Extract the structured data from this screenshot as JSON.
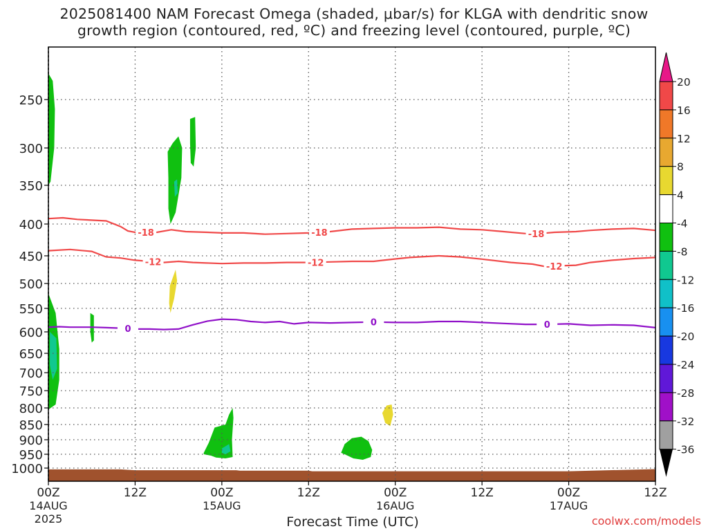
{
  "title_lines": [
    "2025081400 NAM Forecast Omega (shaded, μbar/s) for KLGA with dendritic snow",
    "growth region (contoured, red, ºC) and freezing level (contoured, purple, ºC)"
  ],
  "credit": "coolwx.com/models",
  "colors": {
    "temperature_contour": "#f04848",
    "freezing_contour": "#9010c8",
    "ground": "#a0522d",
    "grid": "#555555"
  },
  "chart_data": {
    "type": "heatmap",
    "xlabel": "Forecast Time (UTC)",
    "ylabel": "",
    "x_range_hours": [
      0,
      84
    ],
    "x_ticks": [
      {
        "hour": 0,
        "label": "00Z",
        "date": "14AUG",
        "year": "2025"
      },
      {
        "hour": 12,
        "label": "12Z",
        "date": "",
        "year": ""
      },
      {
        "hour": 24,
        "label": "00Z",
        "date": "15AUG",
        "year": ""
      },
      {
        "hour": 36,
        "label": "12Z",
        "date": "",
        "year": ""
      },
      {
        "hour": 48,
        "label": "00Z",
        "date": "16AUG",
        "year": ""
      },
      {
        "hour": 60,
        "label": "12Z",
        "date": "",
        "year": ""
      },
      {
        "hour": 72,
        "label": "00Z",
        "date": "17AUG",
        "year": ""
      },
      {
        "hour": 84,
        "label": "12Z",
        "date": "",
        "year": ""
      }
    ],
    "y_range_hpa": [
      1060,
      200
    ],
    "y_ticks": [
      250,
      300,
      350,
      400,
      450,
      500,
      550,
      600,
      650,
      700,
      750,
      800,
      850,
      900,
      950,
      1000
    ],
    "grid": true,
    "colorbar": {
      "labels": [
        "20",
        "16",
        "12",
        "8",
        "4",
        "-4",
        "-8",
        "-12",
        "-16",
        "-20",
        "-24",
        "-28",
        "-32",
        "-36"
      ],
      "colors": [
        "#f04848",
        "#f07828",
        "#e8a830",
        "#e8d830",
        "#ffffff",
        "#10c010",
        "#10c890",
        "#10c0c8",
        "#1890f0",
        "#1838e0",
        "#6018d8",
        "#a010c8",
        "#a0a0a0"
      ],
      "top_arrow_color": "#e81888",
      "bottom_arrow_color": "#000000"
    },
    "contours": [
      {
        "label": "-18",
        "color": "#f04848",
        "points": [
          [
            0,
            393
          ],
          [
            2,
            392
          ],
          [
            4,
            394
          ],
          [
            8,
            396
          ],
          [
            10,
            404
          ],
          [
            11,
            411
          ],
          [
            12,
            413
          ],
          [
            15,
            413
          ],
          [
            17,
            409
          ],
          [
            19,
            412
          ],
          [
            22,
            413
          ],
          [
            24,
            414
          ],
          [
            27,
            414
          ],
          [
            30,
            416
          ],
          [
            33,
            415
          ],
          [
            36,
            414
          ],
          [
            39,
            412
          ],
          [
            42,
            408
          ],
          [
            45,
            407
          ],
          [
            48,
            406
          ],
          [
            51,
            406
          ],
          [
            54,
            405
          ],
          [
            57,
            408
          ],
          [
            60,
            409
          ],
          [
            63,
            412
          ],
          [
            66,
            415
          ],
          [
            68,
            415
          ],
          [
            70,
            413
          ],
          [
            73,
            412
          ],
          [
            75,
            410
          ],
          [
            78,
            408
          ],
          [
            81,
            407
          ],
          [
            84,
            410
          ]
        ],
        "label_hours": [
          13.5,
          37.5,
          67.5
        ]
      },
      {
        "label": "-12",
        "color": "#f04848",
        "points": [
          [
            0,
            442
          ],
          [
            3,
            440
          ],
          [
            6,
            443
          ],
          [
            8,
            452
          ],
          [
            10,
            454
          ],
          [
            12,
            458
          ],
          [
            14,
            460
          ],
          [
            16,
            462
          ],
          [
            18,
            460
          ],
          [
            20,
            462
          ],
          [
            24,
            464
          ],
          [
            27,
            463
          ],
          [
            30,
            463
          ],
          [
            33,
            462
          ],
          [
            36,
            462
          ],
          [
            39,
            461
          ],
          [
            42,
            460
          ],
          [
            45,
            460
          ],
          [
            47,
            457
          ],
          [
            50,
            453
          ],
          [
            54,
            450
          ],
          [
            57,
            452
          ],
          [
            60,
            456
          ],
          [
            64,
            462
          ],
          [
            67,
            465
          ],
          [
            69,
            470
          ],
          [
            71,
            468
          ],
          [
            73,
            467
          ],
          [
            75,
            462
          ],
          [
            78,
            458
          ],
          [
            81,
            455
          ],
          [
            84,
            453
          ]
        ],
        "label_hours": [
          14.5,
          37,
          70
        ]
      },
      {
        "label": "0",
        "color": "#9010c8",
        "points": [
          [
            0,
            590
          ],
          [
            1.5,
            589
          ],
          [
            3,
            590
          ],
          [
            6,
            590
          ],
          [
            8,
            591
          ],
          [
            10,
            592
          ],
          [
            12,
            594
          ],
          [
            14,
            594
          ],
          [
            16,
            595
          ],
          [
            18,
            594
          ],
          [
            20,
            585
          ],
          [
            22,
            577
          ],
          [
            24,
            573
          ],
          [
            26,
            574
          ],
          [
            28,
            578
          ],
          [
            30,
            580
          ],
          [
            32,
            578
          ],
          [
            34,
            583
          ],
          [
            36,
            580
          ],
          [
            39,
            581
          ],
          [
            42,
            580
          ],
          [
            45,
            579
          ],
          [
            48,
            580
          ],
          [
            51,
            580
          ],
          [
            54,
            578
          ],
          [
            57,
            578
          ],
          [
            60,
            580
          ],
          [
            63,
            582
          ],
          [
            66,
            584
          ],
          [
            69,
            584
          ],
          [
            72,
            583
          ],
          [
            75,
            586
          ],
          [
            78,
            585
          ],
          [
            81,
            586
          ],
          [
            84,
            591
          ]
        ],
        "label_hours": [
          11,
          45,
          69
        ]
      }
    ],
    "omega_regions": [
      {
        "value_range": [
          -8,
          -4
        ],
        "color": "#10c010",
        "polygon": [
          [
            0,
            215
          ],
          [
            0.6,
            225
          ],
          [
            0.9,
            260
          ],
          [
            0.8,
            300
          ],
          [
            0.3,
            345
          ],
          [
            0,
            350
          ]
        ]
      },
      {
        "value_range": [
          -8,
          -4
        ],
        "color": "#10c010",
        "polygon": [
          [
            16.5,
            305
          ],
          [
            17.2,
            295
          ],
          [
            18,
            288
          ],
          [
            18.5,
            300
          ],
          [
            18.4,
            340
          ],
          [
            17.6,
            385
          ],
          [
            16.9,
            400
          ],
          [
            16.6,
            380
          ],
          [
            16.6,
            340
          ]
        ]
      },
      {
        "value_range": [
          -8,
          -4
        ],
        "color": "#10c010",
        "polygon": [
          [
            19.6,
            270
          ],
          [
            20.3,
            268
          ],
          [
            20.4,
            300
          ],
          [
            20.1,
            325
          ],
          [
            19.7,
            320
          ],
          [
            19.6,
            295
          ]
        ]
      },
      {
        "value_range": [
          -12,
          -8
        ],
        "color": "#10c890",
        "polygon": [
          [
            17.4,
            345
          ],
          [
            17.8,
            342
          ],
          [
            17.9,
            360
          ],
          [
            17.5,
            365
          ]
        ]
      },
      {
        "value_range": [
          8,
          4
        ],
        "color": "#e8d830",
        "polygon": [
          [
            16.8,
            505
          ],
          [
            17.6,
            475
          ],
          [
            17.8,
            495
          ],
          [
            17.4,
            530
          ],
          [
            16.9,
            560
          ],
          [
            16.7,
            540
          ]
        ]
      },
      {
        "value_range": [
          -8,
          -4
        ],
        "color": "#10c010",
        "polygon": [
          [
            0,
            520
          ],
          [
            1,
            560
          ],
          [
            1.5,
            640
          ],
          [
            1.5,
            720
          ],
          [
            1,
            790
          ],
          [
            0,
            805
          ]
        ]
      },
      {
        "value_range": [
          -12,
          -8
        ],
        "color": "#10c890",
        "polygon": [
          [
            0.2,
            600
          ],
          [
            1.1,
            615
          ],
          [
            1.2,
            690
          ],
          [
            0.6,
            720
          ],
          [
            0.2,
            680
          ]
        ]
      },
      {
        "value_range": [
          -8,
          -4
        ],
        "color": "#10c010",
        "polygon": [
          [
            5.8,
            560
          ],
          [
            6.3,
            565
          ],
          [
            6.3,
            620
          ],
          [
            6,
            625
          ],
          [
            5.8,
            600
          ]
        ]
      },
      {
        "value_range": [
          -8,
          -4
        ],
        "color": "#10c010",
        "polygon": [
          [
            21.5,
            945
          ],
          [
            22.2,
            910
          ],
          [
            23,
            860
          ],
          [
            24.5,
            850
          ],
          [
            25,
            820
          ],
          [
            25.5,
            800
          ],
          [
            25.6,
            830
          ],
          [
            25.4,
            900
          ],
          [
            25.5,
            960
          ],
          [
            24.5,
            965
          ],
          [
            23.2,
            962
          ],
          [
            22.5,
            955
          ],
          [
            21.5,
            950
          ]
        ]
      },
      {
        "value_range": [
          -12,
          -8
        ],
        "color": "#10c890",
        "polygon": [
          [
            24,
            930
          ],
          [
            25,
            915
          ],
          [
            25.2,
            940
          ],
          [
            24.5,
            950
          ],
          [
            24,
            945
          ]
        ]
      },
      {
        "value_range": [
          -8,
          -4
        ],
        "color": "#10c010",
        "polygon": [
          [
            40.5,
            945
          ],
          [
            41,
            915
          ],
          [
            42,
            895
          ],
          [
            43.3,
            890
          ],
          [
            44.3,
            905
          ],
          [
            44.8,
            935
          ],
          [
            44.6,
            960
          ],
          [
            43.5,
            970
          ],
          [
            42.2,
            965
          ],
          [
            41,
            950
          ]
        ]
      },
      {
        "value_range": [
          8,
          4
        ],
        "color": "#e8d830",
        "polygon": [
          [
            46.2,
            815
          ],
          [
            46.8,
            793
          ],
          [
            47.5,
            790
          ],
          [
            47.7,
            820
          ],
          [
            47.3,
            855
          ],
          [
            46.6,
            845
          ]
        ]
      }
    ],
    "ground_pressure_hpa": [
      [
        0,
        1005
      ],
      [
        10,
        1005
      ],
      [
        12,
        1008
      ],
      [
        26,
        1008
      ],
      [
        26.5,
        1010
      ],
      [
        36,
        1010
      ],
      [
        36.5,
        1012
      ],
      [
        72,
        1012
      ],
      [
        84,
        1004
      ]
    ]
  }
}
